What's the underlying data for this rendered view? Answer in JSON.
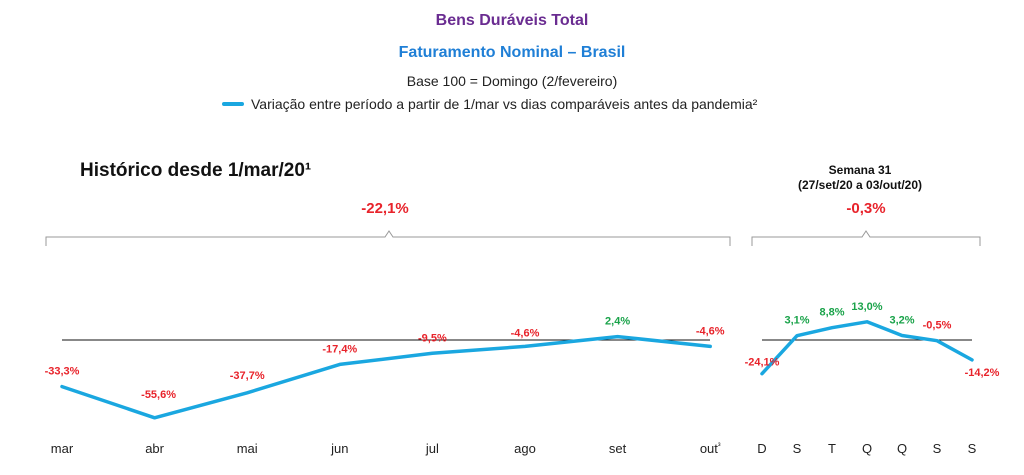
{
  "header": {
    "title": "Bens Duráveis Total",
    "subtitle": "Faturamento Nominal – Brasil",
    "base": "Base 100 = Domingo (2/fevereiro)",
    "legend": "Variação entre período a partir de 1/mar vs dias comparáveis antes da pandemia²"
  },
  "colors": {
    "line": "#1aa7e0",
    "negative": "#e8232b",
    "positive": "#1aa34a",
    "title": "#6a2c91",
    "subtitle": "#1f7fd6"
  },
  "chart_data": [
    {
      "type": "line",
      "title": "Histórico desde 1/mar/20¹",
      "summary": "-22,1%",
      "categories": [
        "mar",
        "abr",
        "mai",
        "jun",
        "jul",
        "ago",
        "set",
        "out³"
      ],
      "values": [
        -33.3,
        -55.6,
        -37.7,
        -17.4,
        -9.5,
        -4.6,
        2.4,
        -4.6
      ],
      "labels": [
        "-33,3%",
        "-55,6%",
        "-37,7%",
        "-17,4%",
        "-9,5%",
        "-4,6%",
        "2,4%",
        "-4,6%"
      ],
      "baseline": 0
    },
    {
      "type": "line",
      "title": "Semana 31",
      "subtitle": "(27/set/20 a 03/out/20)",
      "summary": "-0,3%",
      "categories": [
        "D",
        "S",
        "T",
        "Q",
        "Q",
        "S",
        "S"
      ],
      "values": [
        -24.1,
        3.1,
        8.8,
        13.0,
        3.2,
        -0.5,
        -14.2
      ],
      "labels": [
        "-24,1%",
        "3,1%",
        "8,8%",
        "13,0%",
        "3,2%",
        "-0,5%",
        "-14,2%"
      ],
      "baseline": 0
    }
  ]
}
